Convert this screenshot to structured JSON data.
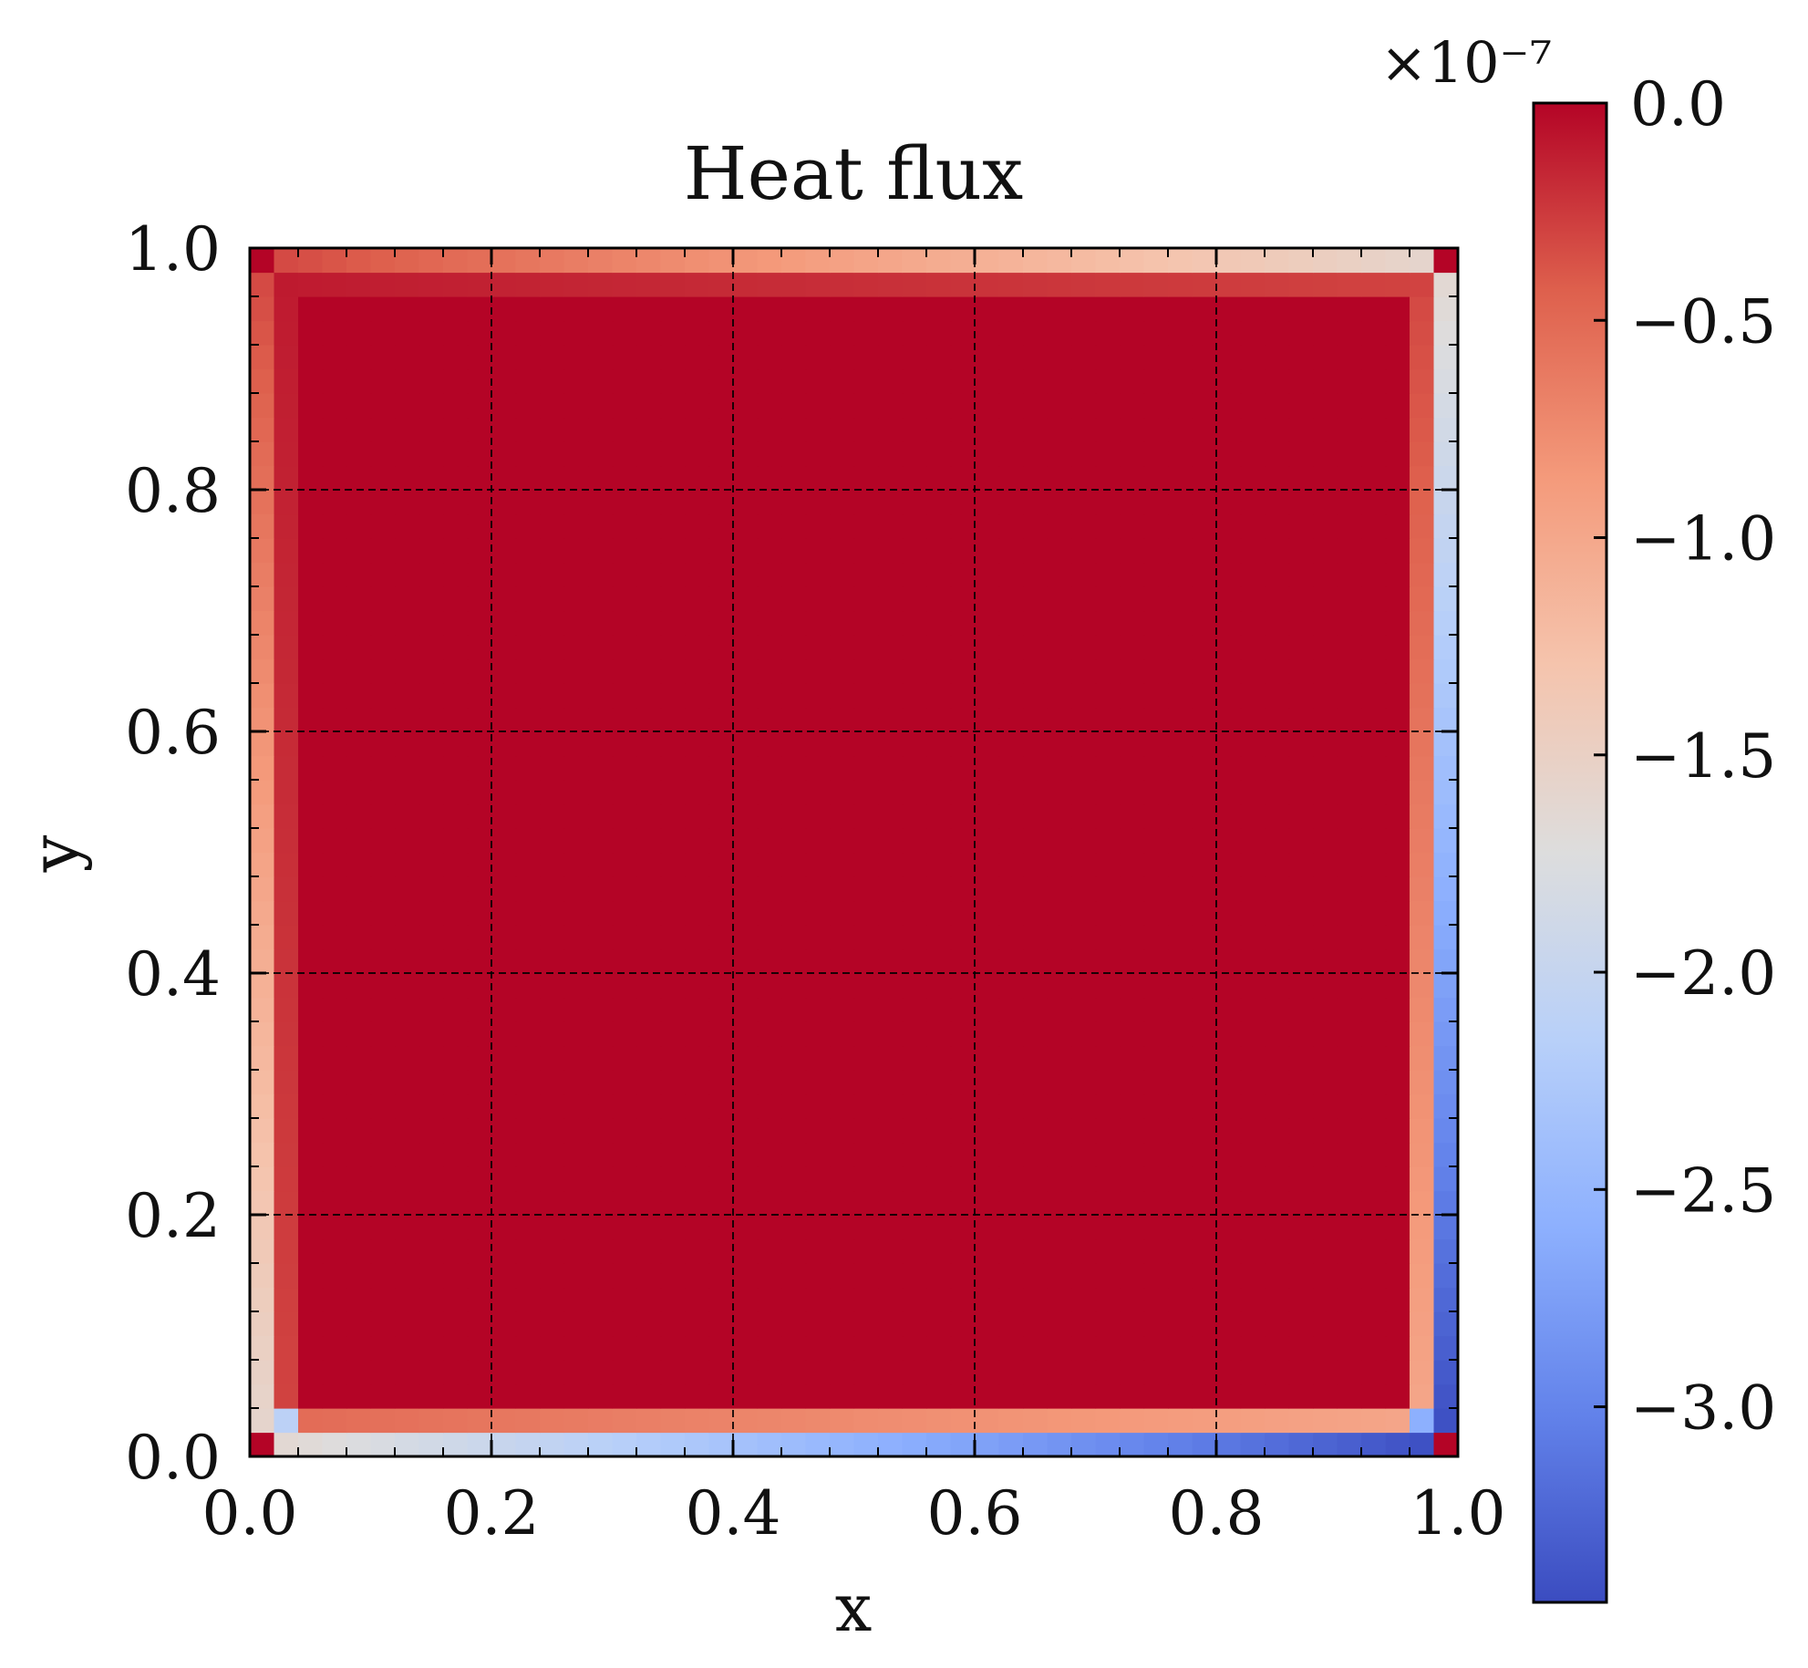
{
  "chart_data": {
    "type": "heatmap",
    "title": "Heat flux",
    "xlabel": "x",
    "ylabel": "y",
    "xlim": [
      0.0,
      1.0
    ],
    "ylim": [
      0.0,
      1.0
    ],
    "x_ticks": [
      "0.0",
      "0.2",
      "0.4",
      "0.6",
      "0.8",
      "1.0"
    ],
    "y_ticks": [
      "0.0",
      "0.2",
      "0.4",
      "0.6",
      "0.8",
      "1.0"
    ],
    "grid": true,
    "grid_style": "dashed",
    "colormap": "coolwarm",
    "grid_cells": [
      50,
      50
    ],
    "colorbar": {
      "scale_label": "×10⁻⁷",
      "min": -3.45,
      "max": 0.0,
      "ticks": [
        0.0,
        -0.5,
        -1.0,
        -1.5,
        -2.0,
        -2.5,
        -3.0
      ],
      "tick_labels": [
        "0.0",
        "−0.5",
        "−1.0",
        "−1.5",
        "−2.0",
        "−2.5",
        "−3.0"
      ]
    },
    "field_description": {
      "interior_value": 0.0,
      "corner_value": 0.0,
      "outer_ring": {
        "top_row": {
          "from_x0": -0.3,
          "to_x1": -1.6
        },
        "bottom_row": {
          "from_x0": -1.6,
          "to_x1": -3.45
        },
        "left_col": {
          "from_y0": -1.6,
          "to_y1": -0.3
        },
        "right_col": {
          "from_y0": -3.45,
          "to_y1": -1.6
        }
      },
      "second_ring": {
        "top_row": {
          "from_x0": -0.1,
          "to_x1": -0.3
        },
        "bottom_row": {
          "from_x0": -0.5,
          "to_x1": -1.0
        },
        "left_col": {
          "from_y0": -0.3,
          "to_y1": -0.1
        },
        "right_col": {
          "from_y0": -1.0,
          "to_y1": -0.3
        }
      }
    }
  }
}
